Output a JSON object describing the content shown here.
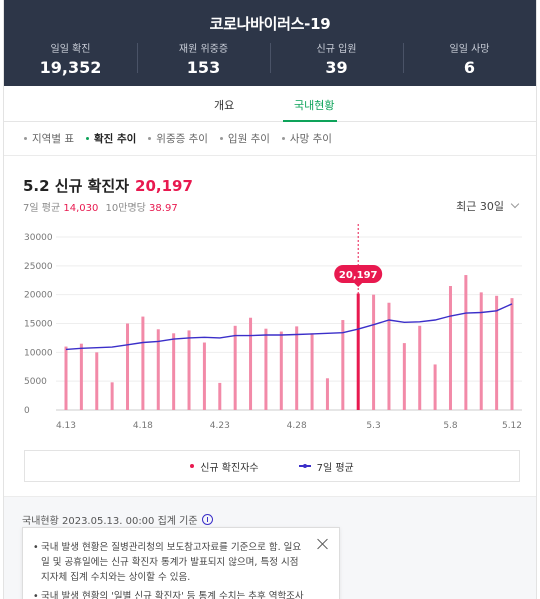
{
  "header": {
    "title": "코로나바이러스-19",
    "stats": [
      {
        "label": "일일 확진",
        "value": "19,352"
      },
      {
        "label": "재원 위중증",
        "value": "153"
      },
      {
        "label": "신규 입원",
        "value": "39"
      },
      {
        "label": "일일 사망",
        "value": "6"
      }
    ]
  },
  "tabs": [
    {
      "label": "개요"
    },
    {
      "label": "국내현황"
    }
  ],
  "subtabs": [
    {
      "label": "지역별 표"
    },
    {
      "label": "확진 추이"
    },
    {
      "label": "위중증 추이"
    },
    {
      "label": "입원 추이"
    },
    {
      "label": "사망 추이"
    }
  ],
  "chart_head": {
    "title": "5.2 신규 확진자",
    "value": "20,197",
    "avg_label": "7일 평균",
    "avg_value": "14,030",
    "per_label": "10만명당",
    "per_value": "38.97",
    "period": "최근 30일"
  },
  "chart_data": {
    "type": "bar",
    "title": "5.2 신규 확진자",
    "ylim": [
      0,
      30000
    ],
    "y_ticks": [
      "30000",
      "25000",
      "20000",
      "15000",
      "10000",
      "5000",
      "0"
    ],
    "x_tick_labels": [
      {
        "index": 0,
        "label": "4.13"
      },
      {
        "index": 5,
        "label": "4.18"
      },
      {
        "index": 10,
        "label": "4.23"
      },
      {
        "index": 15,
        "label": "4.28"
      },
      {
        "index": 20,
        "label": "5.3"
      },
      {
        "index": 25,
        "label": "5.8"
      },
      {
        "index": 29,
        "label": "5.12"
      }
    ],
    "categories": [
      "4.13",
      "4.14",
      "4.15",
      "4.16",
      "4.17",
      "4.18",
      "4.19",
      "4.20",
      "4.21",
      "4.22",
      "4.23",
      "4.24",
      "4.25",
      "4.26",
      "4.27",
      "4.28",
      "4.29",
      "4.30",
      "5.1",
      "5.2",
      "5.3",
      "5.4",
      "5.5",
      "5.6",
      "5.7",
      "5.8",
      "5.9",
      "5.10",
      "5.11",
      "5.12"
    ],
    "series": [
      {
        "name": "신규 확진자수",
        "type": "bar",
        "color": "#f28aa8",
        "highlight_color": "#e8194f",
        "values": [
          11000,
          11500,
          10000,
          4800,
          15000,
          16200,
          14000,
          13300,
          13800,
          11700,
          4700,
          14600,
          16000,
          14100,
          13600,
          14500,
          13300,
          5500,
          15600,
          20197,
          20000,
          18600,
          11600,
          14600,
          7900,
          21500,
          23400,
          20400,
          19800,
          19400
        ]
      },
      {
        "name": "7일 평균",
        "type": "line",
        "color": "#3b2fc9",
        "values": [
          10500,
          10700,
          10800,
          10900,
          11300,
          11700,
          11900,
          12300,
          12500,
          12600,
          12500,
          12900,
          12900,
          13000,
          13000,
          13100,
          13200,
          13300,
          13400,
          14030,
          14800,
          15600,
          15200,
          15300,
          15600,
          16300,
          16800,
          16900,
          17200,
          18400
        ]
      }
    ],
    "highlight_index": 19,
    "highlight_label": "20,197",
    "grid": true,
    "legend": "bottom"
  },
  "legend": {
    "bar": "신규 확진자수",
    "line": "7일 평균"
  },
  "footer": {
    "basis": "국내현황 2023.05.13. 00:00 집계 기준",
    "notes": [
      "국내 발생 현황은 질병관리청의 보도참고자료를 기준으로 함. 일요일 및 공휴일에는 신규 확진자 통계가 발표되지 않으며, 특정 시점 지자체 집계 수치와는 상이할 수 있음.",
      "국내 발생 현황의 '일별 신규 확진자' 등 통계 수치는 추후 역학조사 과정에"
    ]
  }
}
